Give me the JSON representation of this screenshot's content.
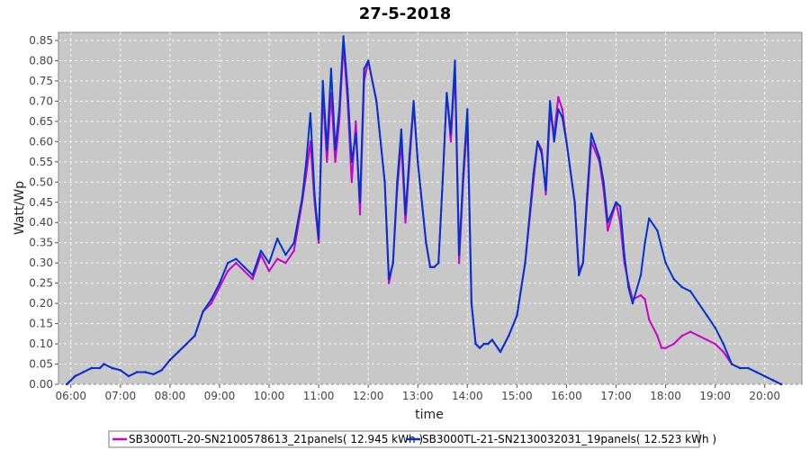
{
  "chart_data": {
    "type": "line",
    "title": "27-5-2018",
    "xlabel": "time",
    "ylabel": "Watt/Wp",
    "xlim": [
      "05:45",
      "20:45"
    ],
    "ylim": [
      0,
      0.87
    ],
    "x_ticks": [
      "06:00",
      "07:00",
      "08:00",
      "09:00",
      "10:00",
      "11:00",
      "12:00",
      "13:00",
      "14:00",
      "15:00",
      "16:00",
      "17:00",
      "18:00",
      "19:00",
      "20:00"
    ],
    "y_ticks": [
      "0.00",
      "0.05",
      "0.10",
      "0.15",
      "0.20",
      "0.25",
      "0.30",
      "0.35",
      "0.40",
      "0.45",
      "0.50",
      "0.55",
      "0.60",
      "0.65",
      "0.70",
      "0.75",
      "0.80",
      "0.85"
    ],
    "grid": true,
    "legend_position": "bottom",
    "background_color": "#c8c8c8",
    "series": [
      {
        "name": "SB3000TL-20-SN2100578613_21panels( 12.945 kWh )",
        "color": "#cc00cc",
        "points": [
          [
            "05:55",
            0.0
          ],
          [
            "06:05",
            0.02
          ],
          [
            "06:15",
            0.03
          ],
          [
            "06:25",
            0.04
          ],
          [
            "06:35",
            0.04
          ],
          [
            "06:40",
            0.05
          ],
          [
            "06:50",
            0.04
          ],
          [
            "07:00",
            0.035
          ],
          [
            "07:10",
            0.02
          ],
          [
            "07:20",
            0.03
          ],
          [
            "07:30",
            0.03
          ],
          [
            "07:40",
            0.025
          ],
          [
            "07:50",
            0.035
          ],
          [
            "08:00",
            0.06
          ],
          [
            "08:10",
            0.08
          ],
          [
            "08:20",
            0.1
          ],
          [
            "08:30",
            0.12
          ],
          [
            "08:40",
            0.18
          ],
          [
            "08:50",
            0.2
          ],
          [
            "09:00",
            0.24
          ],
          [
            "09:10",
            0.28
          ],
          [
            "09:20",
            0.3
          ],
          [
            "09:30",
            0.28
          ],
          [
            "09:40",
            0.26
          ],
          [
            "09:50",
            0.32
          ],
          [
            "10:00",
            0.28
          ],
          [
            "10:10",
            0.31
          ],
          [
            "10:20",
            0.3
          ],
          [
            "10:30",
            0.33
          ],
          [
            "10:40",
            0.45
          ],
          [
            "10:45",
            0.52
          ],
          [
            "10:50",
            0.6
          ],
          [
            "10:55",
            0.45
          ],
          [
            "11:00",
            0.35
          ],
          [
            "11:05",
            0.72
          ],
          [
            "11:10",
            0.55
          ],
          [
            "11:15",
            0.72
          ],
          [
            "11:20",
            0.55
          ],
          [
            "11:25",
            0.65
          ],
          [
            "11:30",
            0.84
          ],
          [
            "11:35",
            0.7
          ],
          [
            "11:40",
            0.5
          ],
          [
            "11:45",
            0.65
          ],
          [
            "11:50",
            0.42
          ],
          [
            "11:55",
            0.75
          ],
          [
            "12:00",
            0.8
          ],
          [
            "12:10",
            0.7
          ],
          [
            "12:20",
            0.5
          ],
          [
            "12:25",
            0.25
          ],
          [
            "12:30",
            0.3
          ],
          [
            "12:35",
            0.48
          ],
          [
            "12:40",
            0.6
          ],
          [
            "12:45",
            0.4
          ],
          [
            "12:50",
            0.55
          ],
          [
            "12:55",
            0.69
          ],
          [
            "13:00",
            0.55
          ],
          [
            "13:10",
            0.35
          ],
          [
            "13:15",
            0.29
          ],
          [
            "13:20",
            0.29
          ],
          [
            "13:25",
            0.3
          ],
          [
            "13:30",
            0.5
          ],
          [
            "13:35",
            0.72
          ],
          [
            "13:40",
            0.6
          ],
          [
            "13:45",
            0.78
          ],
          [
            "13:50",
            0.3
          ],
          [
            "13:55",
            0.5
          ],
          [
            "14:00",
            0.65
          ],
          [
            "14:05",
            0.2
          ],
          [
            "14:10",
            0.1
          ],
          [
            "14:15",
            0.09
          ],
          [
            "14:20",
            0.1
          ],
          [
            "14:25",
            0.1
          ],
          [
            "14:30",
            0.11
          ],
          [
            "14:40",
            0.08
          ],
          [
            "14:50",
            0.12
          ],
          [
            "15:00",
            0.17
          ],
          [
            "15:10",
            0.3
          ],
          [
            "15:20",
            0.5
          ],
          [
            "15:25",
            0.6
          ],
          [
            "15:30",
            0.58
          ],
          [
            "15:35",
            0.47
          ],
          [
            "15:40",
            0.67
          ],
          [
            "15:45",
            0.62
          ],
          [
            "15:50",
            0.71
          ],
          [
            "15:55",
            0.68
          ],
          [
            "16:00",
            0.6
          ],
          [
            "16:10",
            0.45
          ],
          [
            "16:15",
            0.28
          ],
          [
            "16:20",
            0.3
          ],
          [
            "16:25",
            0.45
          ],
          [
            "16:30",
            0.6
          ],
          [
            "16:40",
            0.55
          ],
          [
            "16:45",
            0.48
          ],
          [
            "16:50",
            0.38
          ],
          [
            "17:00",
            0.45
          ],
          [
            "17:05",
            0.4
          ],
          [
            "17:10",
            0.3
          ],
          [
            "17:15",
            0.25
          ],
          [
            "17:20",
            0.21
          ],
          [
            "17:30",
            0.22
          ],
          [
            "17:35",
            0.21
          ],
          [
            "17:40",
            0.16
          ],
          [
            "17:50",
            0.12
          ],
          [
            "17:55",
            0.09
          ],
          [
            "18:00",
            0.09
          ],
          [
            "18:10",
            0.1
          ],
          [
            "18:20",
            0.12
          ],
          [
            "18:30",
            0.13
          ],
          [
            "18:40",
            0.12
          ],
          [
            "18:50",
            0.11
          ],
          [
            "19:00",
            0.1
          ],
          [
            "19:10",
            0.08
          ],
          [
            "19:20",
            0.05
          ],
          [
            "19:30",
            0.04
          ],
          [
            "19:40",
            0.04
          ],
          [
            "19:50",
            0.03
          ],
          [
            "20:00",
            0.02
          ],
          [
            "20:10",
            0.01
          ],
          [
            "20:20",
            0.0
          ]
        ]
      },
      {
        "name": "SB3000TL-21-SN2130032031_19panels( 12.523 kWh )",
        "color": "#0033cc",
        "points": [
          [
            "05:55",
            0.0
          ],
          [
            "06:05",
            0.02
          ],
          [
            "06:15",
            0.03
          ],
          [
            "06:25",
            0.04
          ],
          [
            "06:35",
            0.04
          ],
          [
            "06:40",
            0.05
          ],
          [
            "06:50",
            0.04
          ],
          [
            "07:00",
            0.035
          ],
          [
            "07:10",
            0.02
          ],
          [
            "07:20",
            0.03
          ],
          [
            "07:30",
            0.03
          ],
          [
            "07:40",
            0.025
          ],
          [
            "07:50",
            0.035
          ],
          [
            "08:00",
            0.06
          ],
          [
            "08:10",
            0.08
          ],
          [
            "08:20",
            0.1
          ],
          [
            "08:30",
            0.12
          ],
          [
            "08:40",
            0.18
          ],
          [
            "08:50",
            0.21
          ],
          [
            "09:00",
            0.25
          ],
          [
            "09:10",
            0.3
          ],
          [
            "09:20",
            0.31
          ],
          [
            "09:30",
            0.29
          ],
          [
            "09:40",
            0.27
          ],
          [
            "09:50",
            0.33
          ],
          [
            "10:00",
            0.3
          ],
          [
            "10:10",
            0.36
          ],
          [
            "10:20",
            0.32
          ],
          [
            "10:30",
            0.35
          ],
          [
            "10:40",
            0.46
          ],
          [
            "10:45",
            0.55
          ],
          [
            "10:50",
            0.67
          ],
          [
            "10:55",
            0.47
          ],
          [
            "11:00",
            0.36
          ],
          [
            "11:05",
            0.75
          ],
          [
            "11:10",
            0.58
          ],
          [
            "11:15",
            0.78
          ],
          [
            "11:20",
            0.58
          ],
          [
            "11:25",
            0.68
          ],
          [
            "11:30",
            0.86
          ],
          [
            "11:35",
            0.73
          ],
          [
            "11:40",
            0.55
          ],
          [
            "11:45",
            0.62
          ],
          [
            "11:50",
            0.45
          ],
          [
            "11:55",
            0.78
          ],
          [
            "12:00",
            0.8
          ],
          [
            "12:10",
            0.7
          ],
          [
            "12:20",
            0.5
          ],
          [
            "12:25",
            0.26
          ],
          [
            "12:30",
            0.3
          ],
          [
            "12:35",
            0.5
          ],
          [
            "12:40",
            0.63
          ],
          [
            "12:45",
            0.42
          ],
          [
            "12:50",
            0.57
          ],
          [
            "12:55",
            0.7
          ],
          [
            "13:00",
            0.55
          ],
          [
            "13:10",
            0.35
          ],
          [
            "13:15",
            0.29
          ],
          [
            "13:20",
            0.29
          ],
          [
            "13:25",
            0.3
          ],
          [
            "13:30",
            0.5
          ],
          [
            "13:35",
            0.72
          ],
          [
            "13:40",
            0.62
          ],
          [
            "13:45",
            0.8
          ],
          [
            "13:50",
            0.32
          ],
          [
            "13:55",
            0.52
          ],
          [
            "14:00",
            0.68
          ],
          [
            "14:05",
            0.2
          ],
          [
            "14:10",
            0.1
          ],
          [
            "14:15",
            0.09
          ],
          [
            "14:20",
            0.1
          ],
          [
            "14:25",
            0.1
          ],
          [
            "14:30",
            0.11
          ],
          [
            "14:40",
            0.08
          ],
          [
            "14:50",
            0.12
          ],
          [
            "15:00",
            0.17
          ],
          [
            "15:10",
            0.3
          ],
          [
            "15:20",
            0.52
          ],
          [
            "15:25",
            0.6
          ],
          [
            "15:30",
            0.57
          ],
          [
            "15:35",
            0.48
          ],
          [
            "15:40",
            0.7
          ],
          [
            "15:45",
            0.6
          ],
          [
            "15:50",
            0.68
          ],
          [
            "15:55",
            0.66
          ],
          [
            "16:00",
            0.6
          ],
          [
            "16:10",
            0.45
          ],
          [
            "16:15",
            0.27
          ],
          [
            "16:20",
            0.3
          ],
          [
            "16:25",
            0.47
          ],
          [
            "16:30",
            0.62
          ],
          [
            "16:40",
            0.56
          ],
          [
            "16:45",
            0.5
          ],
          [
            "16:50",
            0.4
          ],
          [
            "17:00",
            0.45
          ],
          [
            "17:05",
            0.44
          ],
          [
            "17:10",
            0.32
          ],
          [
            "17:15",
            0.24
          ],
          [
            "17:20",
            0.2
          ],
          [
            "17:30",
            0.27
          ],
          [
            "17:35",
            0.35
          ],
          [
            "17:40",
            0.41
          ],
          [
            "17:50",
            0.38
          ],
          [
            "18:00",
            0.3
          ],
          [
            "18:10",
            0.26
          ],
          [
            "18:20",
            0.24
          ],
          [
            "18:30",
            0.23
          ],
          [
            "18:40",
            0.2
          ],
          [
            "18:50",
            0.17
          ],
          [
            "19:00",
            0.14
          ],
          [
            "19:10",
            0.1
          ],
          [
            "19:20",
            0.05
          ],
          [
            "19:30",
            0.04
          ],
          [
            "19:40",
            0.04
          ],
          [
            "19:50",
            0.03
          ],
          [
            "20:00",
            0.02
          ],
          [
            "20:10",
            0.01
          ],
          [
            "20:20",
            0.0
          ]
        ]
      }
    ]
  }
}
